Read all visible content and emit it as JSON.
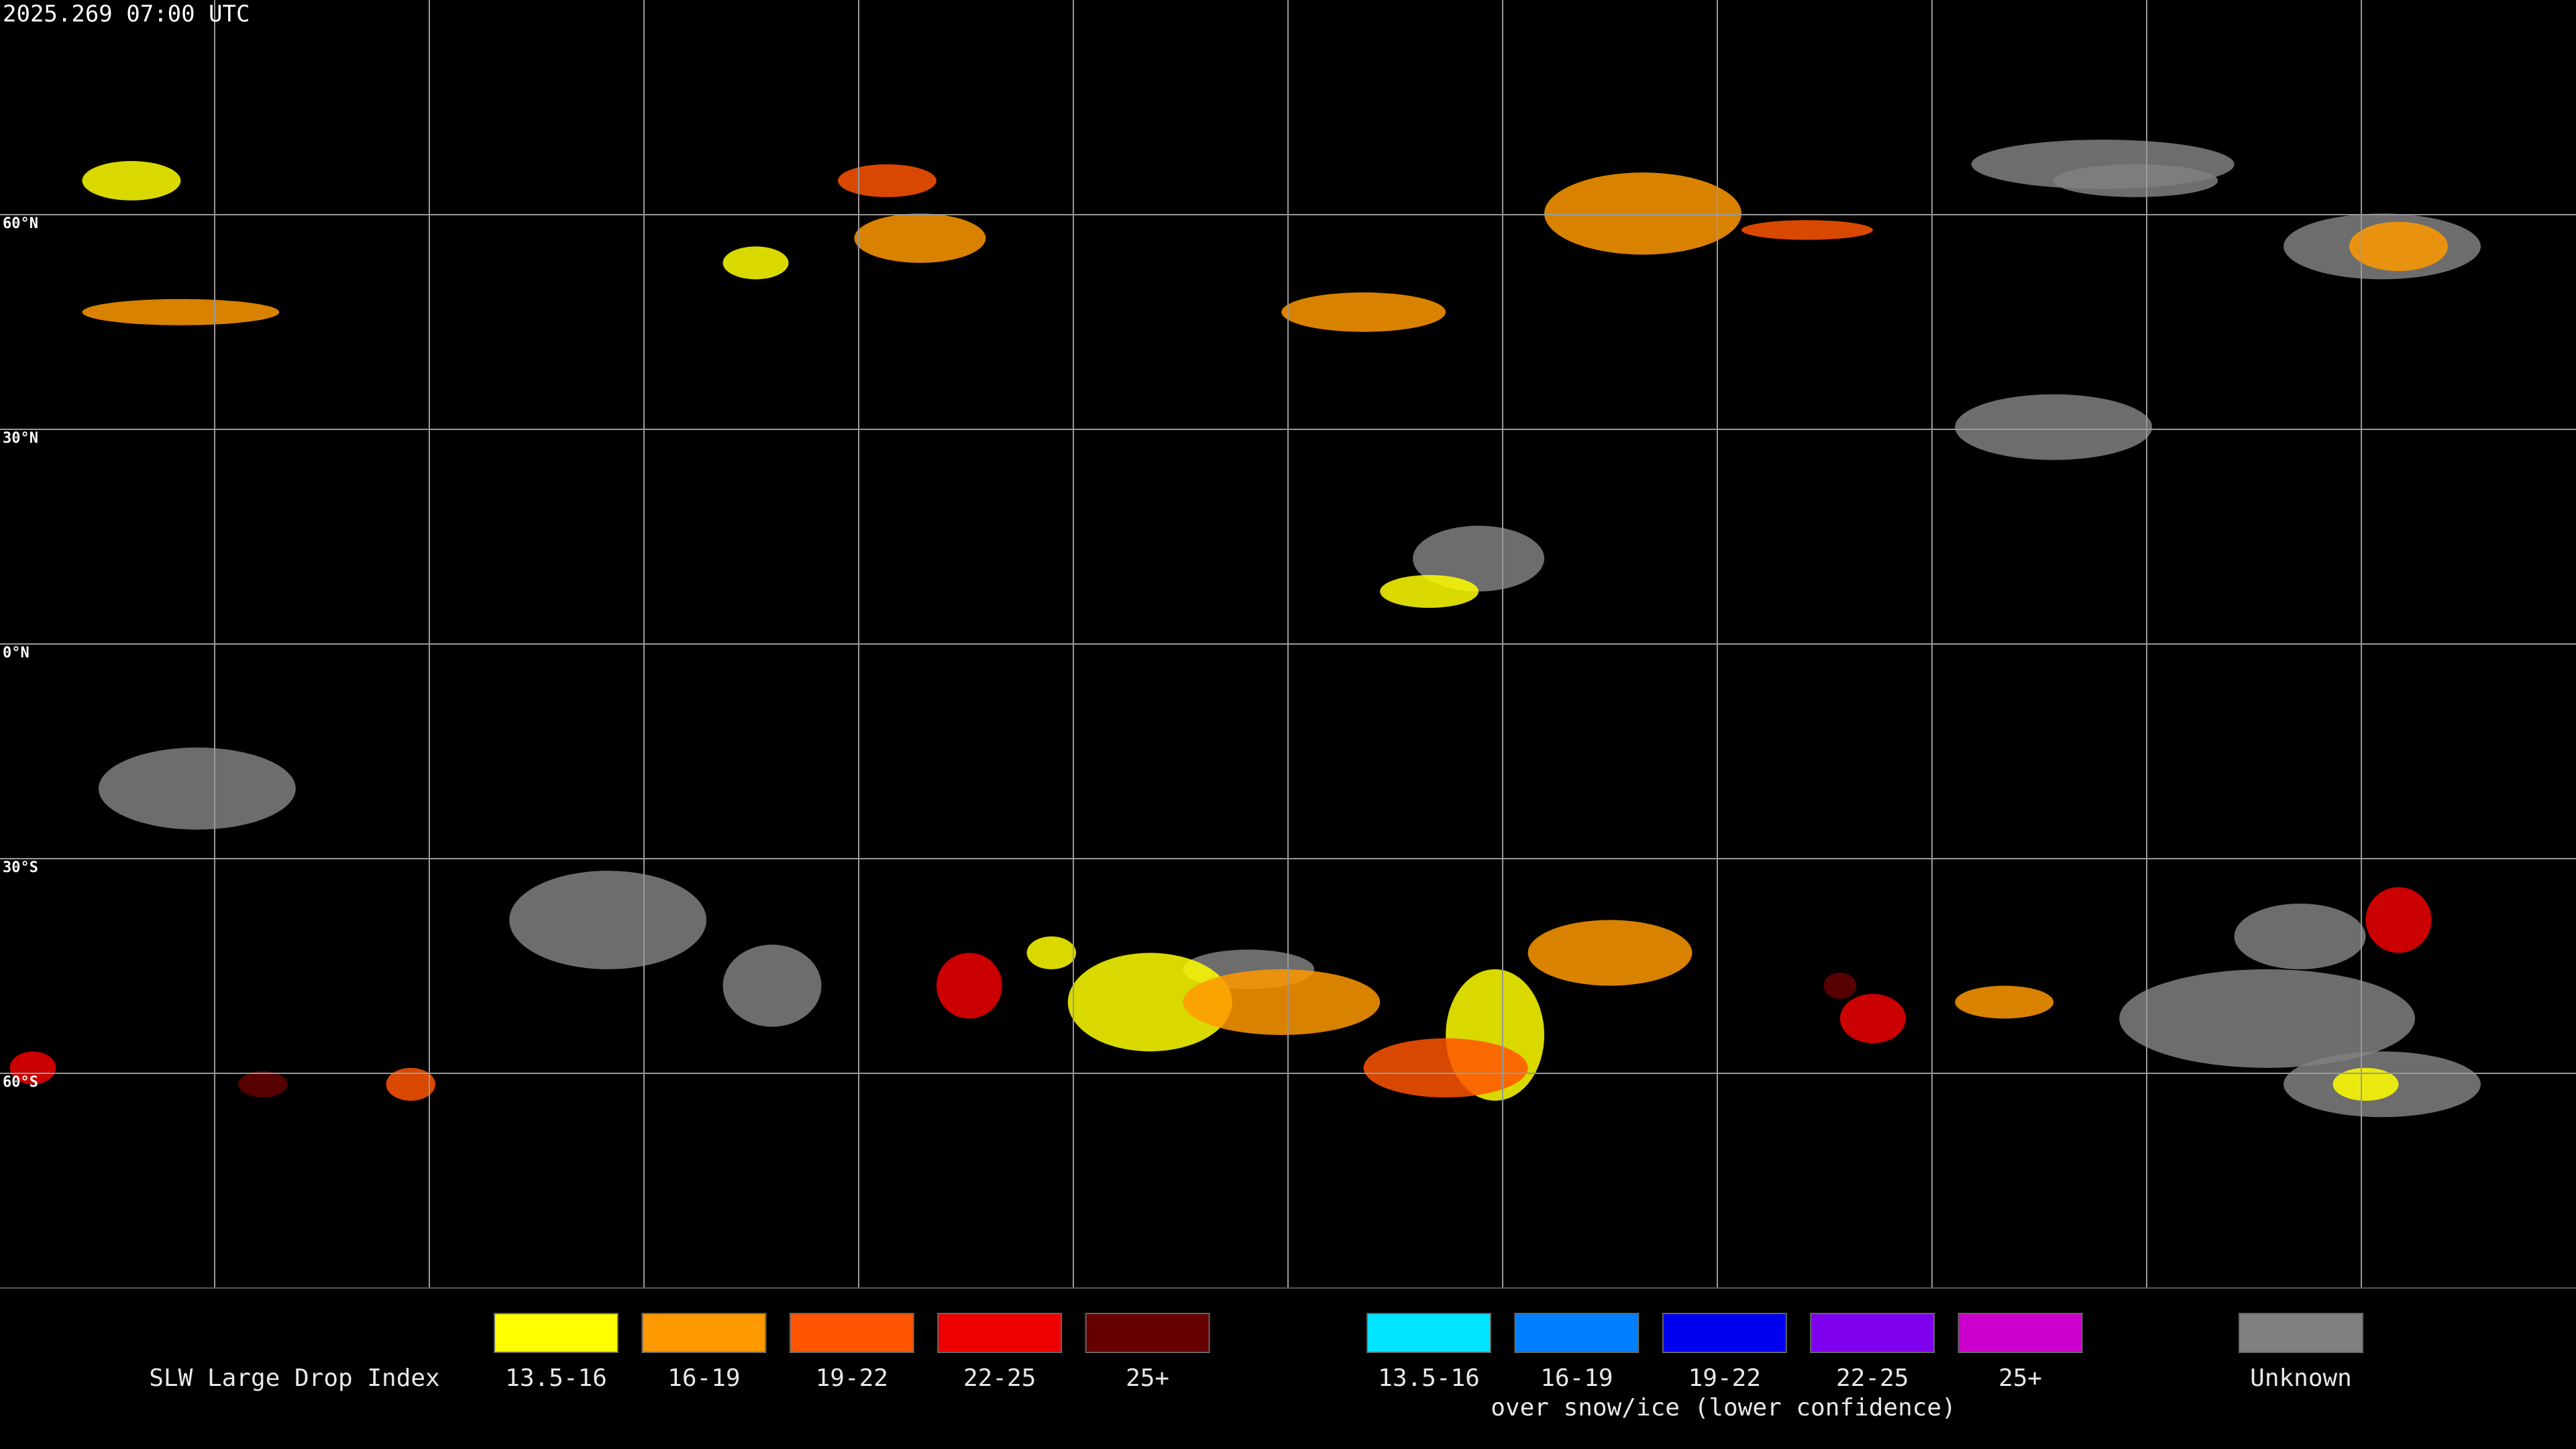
{
  "timestamp": "2025.269 07:00 UTC",
  "lat_labels": [
    "60°N",
    "30°N",
    "0°N",
    "30°S",
    "60°S"
  ],
  "legend": {
    "title": "SLW Large Drop Index",
    "groups": [
      {
        "items": [
          {
            "label": "13.5-16",
            "color": "#ffff00"
          },
          {
            "label": "16-19",
            "color": "#ff9900"
          },
          {
            "label": "19-22",
            "color": "#ff5500"
          },
          {
            "label": "22-25",
            "color": "#ee0000"
          },
          {
            "label": "25+",
            "color": "#660000"
          }
        ]
      },
      {
        "items": [
          {
            "label": "13.5-16",
            "color": "#00e5ff"
          },
          {
            "label": "16-19",
            "color": "#0080ff"
          },
          {
            "label": "19-22",
            "color": "#0000ee"
          },
          {
            "label": "22-25",
            "color": "#7f00ee"
          },
          {
            "label": "25+",
            "color": "#cc00cc"
          }
        ]
      }
    ],
    "snow_note": "over snow/ice (lower confidence)",
    "unknown": {
      "label": "Unknown",
      "color": "#808080"
    }
  }
}
